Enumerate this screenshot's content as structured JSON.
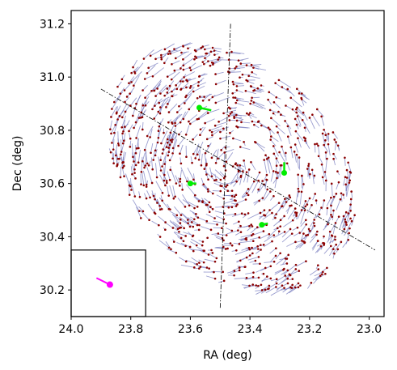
{
  "chart_data": {
    "type": "scatter",
    "title": "",
    "xlabel": "RA (deg)",
    "ylabel": "Dec (deg)",
    "xlim": [
      24.0,
      22.95
    ],
    "ylim": [
      30.1,
      31.25
    ],
    "x_inverted": true,
    "xticks": [
      24.0,
      23.8,
      23.6,
      23.4,
      23.2,
      23.0
    ],
    "xtick_labels": [
      "24.0",
      "23.8",
      "23.6",
      "23.4",
      "23.2",
      "23.0"
    ],
    "yticks": [
      30.2,
      30.4,
      30.6,
      30.8,
      31.0,
      31.2
    ],
    "ytick_labels": [
      "30.2",
      "30.4",
      "30.6",
      "30.8",
      "31.0",
      "31.2"
    ],
    "grid": false,
    "legend": "none",
    "colors": {
      "points": "#8b0000",
      "vectors": "#7b7fc0",
      "highlight": "#00ee00",
      "inset_marker": "#ff00ff",
      "axes": "#000000"
    },
    "dashdot_lines": [
      {
        "x": [
          23.9,
          22.98
        ],
        "y": [
          30.955,
          30.35
        ]
      },
      {
        "x": [
          23.465,
          23.5
        ],
        "y": [
          31.2,
          30.13
        ]
      }
    ],
    "highlight_points": [
      {
        "x": 23.57,
        "y": 30.885,
        "dx": -0.04,
        "dy": -0.01
      },
      {
        "x": 23.6,
        "y": 30.6,
        "dx": -0.02,
        "dy": 0.0
      },
      {
        "x": 23.285,
        "y": 30.64,
        "dx": 0.0,
        "dy": 0.04
      },
      {
        "x": 23.36,
        "y": 30.445,
        "dx": -0.02,
        "dy": 0.005
      }
    ],
    "inset": {
      "xlim": [
        24.0,
        23.75
      ],
      "ylim": [
        30.1,
        30.35
      ],
      "marker": {
        "x": 23.87,
        "y": 30.22,
        "dx": 0.045,
        "dy": 0.025
      }
    },
    "field": {
      "center": {
        "x": 23.46,
        "y": 30.66
      },
      "count": 900,
      "radius_ra": 0.37,
      "radius_dec": 0.52,
      "rotation_deg": -35,
      "vector_scale": 0.035
    }
  }
}
